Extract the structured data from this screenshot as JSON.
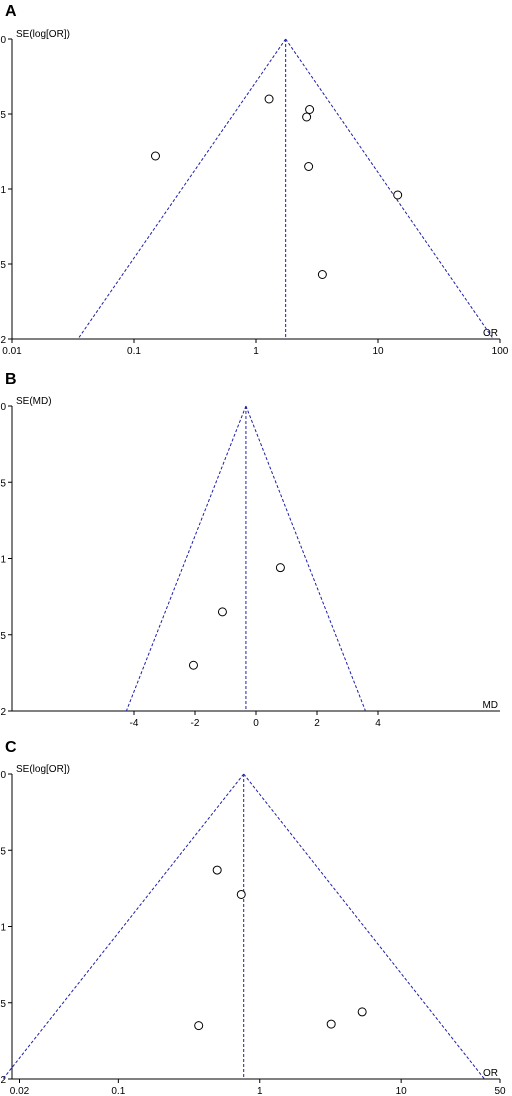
{
  "colors": {
    "axis": "#000000",
    "funnel": "#1f1fa6",
    "marker_stroke": "#000000",
    "marker_fill": "#ffffff"
  },
  "chart_data": [
    {
      "panel_label": "A",
      "type": "scatter",
      "subtype": "funnel-plot",
      "x_scale": "log",
      "xlim": [
        0.01,
        100
      ],
      "ylim": [
        0,
        2
      ],
      "y_inverted": true,
      "ylabel": "SE(log[OR])",
      "xlabel": "OR",
      "x_ticks": [
        {
          "v": 0.01,
          "label": "0.01"
        },
        {
          "v": 0.1,
          "label": "0.1"
        },
        {
          "v": 1,
          "label": "1"
        },
        {
          "v": 10,
          "label": "10"
        },
        {
          "v": 100,
          "label": "100"
        }
      ],
      "y_ticks": [
        {
          "v": 0,
          "label": "0"
        },
        {
          "v": 0.5,
          "label": "0.5"
        },
        {
          "v": 1,
          "label": "1"
        },
        {
          "v": 1.5,
          "label": "1.5"
        },
        {
          "v": 2,
          "label": "2"
        }
      ],
      "pooled_estimate": 1.75,
      "points": [
        {
          "x": 0.15,
          "y": 0.78
        },
        {
          "x": 1.28,
          "y": 0.4
        },
        {
          "x": 2.75,
          "y": 0.47
        },
        {
          "x": 2.6,
          "y": 0.52
        },
        {
          "x": 2.7,
          "y": 0.85
        },
        {
          "x": 14.5,
          "y": 1.04
        },
        {
          "x": 3.5,
          "y": 1.57
        }
      ]
    },
    {
      "panel_label": "B",
      "type": "scatter",
      "subtype": "funnel-plot",
      "x_scale": "linear",
      "xlim": [
        -8,
        8
      ],
      "ylim": [
        0,
        2
      ],
      "y_inverted": true,
      "ylabel": "SE(MD)",
      "xlabel": "MD",
      "x_ticks": [
        {
          "v": -4,
          "label": "-4"
        },
        {
          "v": -2,
          "label": "-2"
        },
        {
          "v": 0,
          "label": "0"
        },
        {
          "v": 2,
          "label": "2"
        },
        {
          "v": 4,
          "label": "4"
        }
      ],
      "y_ticks": [
        {
          "v": 0,
          "label": "0"
        },
        {
          "v": 0.5,
          "label": "0.5"
        },
        {
          "v": 1,
          "label": "1"
        },
        {
          "v": 1.5,
          "label": "1.5"
        },
        {
          "v": 2,
          "label": "2"
        }
      ],
      "pooled_estimate": -0.33,
      "points": [
        {
          "x": 0.8,
          "y": 1.06
        },
        {
          "x": -1.1,
          "y": 1.35
        },
        {
          "x": -2.05,
          "y": 1.7
        }
      ]
    },
    {
      "panel_label": "C",
      "type": "scatter",
      "subtype": "funnel-plot",
      "x_scale": "log",
      "xlim": [
        0.0177,
        50
      ],
      "ylim": [
        0,
        2
      ],
      "y_inverted": true,
      "ylabel": "SE(log[OR])",
      "xlabel": "OR",
      "x_ticks": [
        {
          "v": 0.02,
          "label": "0.02"
        },
        {
          "v": 0.1,
          "label": "0.1"
        },
        {
          "v": 1,
          "label": "1"
        },
        {
          "v": 10,
          "label": "10"
        },
        {
          "v": 50,
          "label": "50"
        }
      ],
      "y_ticks": [
        {
          "v": 0,
          "label": "0"
        },
        {
          "v": 0.5,
          "label": "0.5"
        },
        {
          "v": 1,
          "label": "1"
        },
        {
          "v": 1.5,
          "label": "1.5"
        },
        {
          "v": 2,
          "label": "2"
        }
      ],
      "pooled_estimate": 0.77,
      "points": [
        {
          "x": 0.5,
          "y": 0.63
        },
        {
          "x": 0.74,
          "y": 0.79
        },
        {
          "x": 0.37,
          "y": 1.65
        },
        {
          "x": 3.2,
          "y": 1.64
        },
        {
          "x": 5.3,
          "y": 1.56
        }
      ]
    }
  ]
}
